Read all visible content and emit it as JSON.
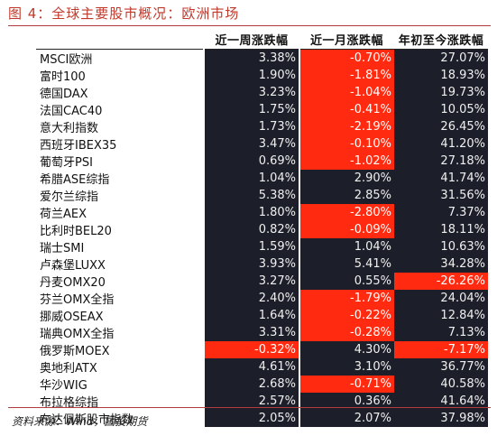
{
  "title": "图 4：全球主要股市概况：欧洲市场",
  "source": "资料来源：Wind，国投期货",
  "colors": {
    "negative": "#ff2a0f",
    "cell_bg": "#1c1f29",
    "title": "#c0392b"
  },
  "chart_data": {
    "type": "table",
    "columns": [
      "",
      "近一周涨跌幅",
      "近一月涨跌幅",
      "年初至今涨跌幅"
    ],
    "rows": [
      [
        "MSCI欧洲",
        "3.38%",
        "-0.70%",
        "27.07%"
      ],
      [
        "富时100",
        "1.90%",
        "-1.81%",
        "18.93%"
      ],
      [
        "德国DAX",
        "3.23%",
        "-1.04%",
        "19.73%"
      ],
      [
        "法国CAC40",
        "1.75%",
        "-0.41%",
        "10.05%"
      ],
      [
        "意大利指数",
        "1.73%",
        "-2.19%",
        "26.45%"
      ],
      [
        "西班牙IBEX35",
        "3.47%",
        "-0.10%",
        "41.20%"
      ],
      [
        "葡萄牙PSI",
        "0.69%",
        "-1.02%",
        "27.18%"
      ],
      [
        "希腊ASE综指",
        "1.04%",
        "2.90%",
        "41.74%"
      ],
      [
        "爱尔兰综指",
        "5.38%",
        "2.85%",
        "31.56%"
      ],
      [
        "荷兰AEX",
        "1.80%",
        "-2.80%",
        "7.37%"
      ],
      [
        "比利时BEL20",
        "0.82%",
        "-0.09%",
        "18.11%"
      ],
      [
        "瑞士SMI",
        "1.59%",
        "1.04%",
        "10.63%"
      ],
      [
        "卢森堡LUXX",
        "3.93%",
        "5.41%",
        "34.28%"
      ],
      [
        "丹麦OMX20",
        "3.27%",
        "0.55%",
        "-26.26%"
      ],
      [
        "芬兰OMX全指",
        "2.40%",
        "-1.79%",
        "24.04%"
      ],
      [
        "挪威OSEAX",
        "1.64%",
        "-0.22%",
        "12.84%"
      ],
      [
        "瑞典OMX全指",
        "3.31%",
        "-0.28%",
        "7.13%"
      ],
      [
        "俄罗斯MOEX",
        "-0.32%",
        "4.30%",
        "-7.17%"
      ],
      [
        "奥地利ATX",
        "4.61%",
        "3.10%",
        "36.77%"
      ],
      [
        "华沙WIG",
        "2.68%",
        "-0.71%",
        "40.58%"
      ],
      [
        "布拉格综指",
        "2.57%",
        "0.36%",
        "41.64%"
      ],
      [
        "布达佩斯股市指数",
        "2.05%",
        "2.07%",
        "37.98%"
      ]
    ]
  }
}
